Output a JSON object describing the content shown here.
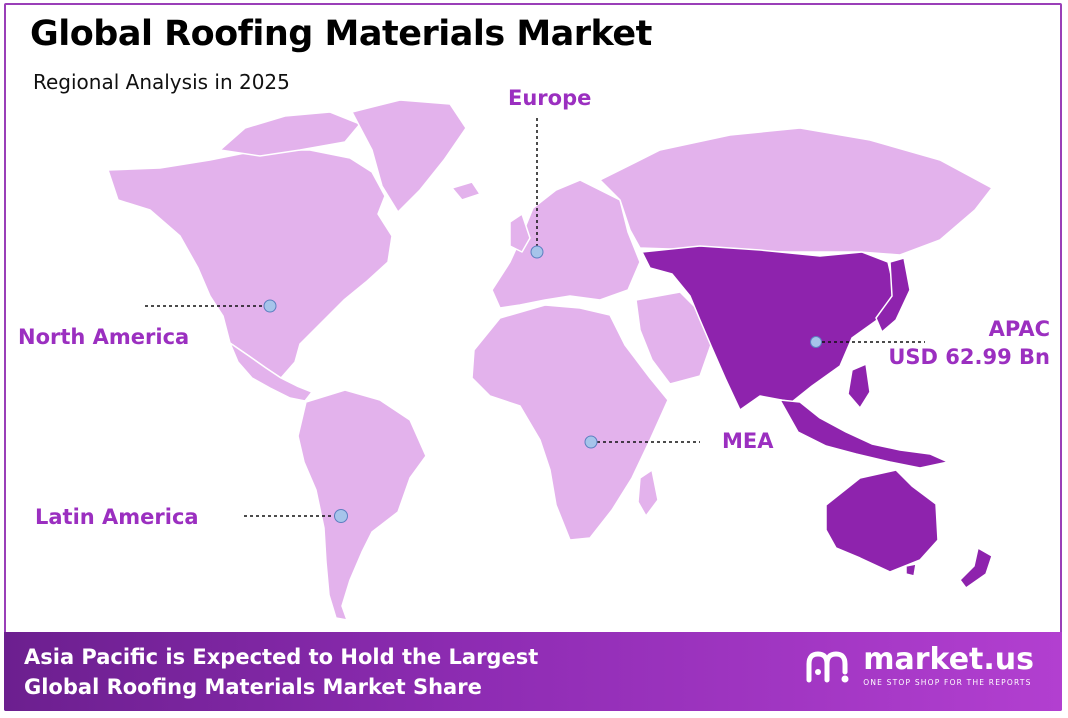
{
  "title": "Global Roofing Materials Market",
  "subtitle": "Regional Analysis in 2025",
  "colors": {
    "land": "#e3b2ec",
    "highlight": "#8e23ad",
    "accent_text": "#9b2fc0",
    "marker": "#a6c4ea",
    "footer_from": "#6c1f8f",
    "footer_to": "#b23fd0"
  },
  "regions": {
    "north_america": {
      "name": "North America"
    },
    "europe": {
      "name": "Europe"
    },
    "apac": {
      "name": "APAC",
      "value": "USD 62.99 Bn",
      "highlighted": true
    },
    "mea": {
      "name": "MEA"
    },
    "latin_america": {
      "name": "Latin America"
    }
  },
  "footer": {
    "line1": "Asia Pacific is Expected to Hold the Largest",
    "line2": "Global Roofing Materials Market Share",
    "brand_name": "market.us",
    "brand_tagline": "ONE STOP SHOP FOR THE REPORTS",
    "brand_icon": "market-us-logo-icon"
  }
}
